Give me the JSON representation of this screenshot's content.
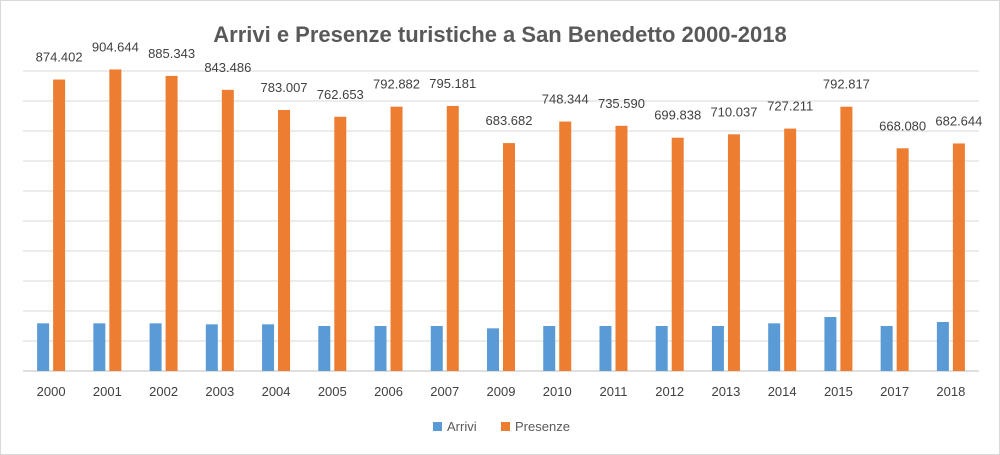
{
  "chart_data": {
    "type": "bar",
    "title": "Arrivi e Presenze turistiche a San Benedetto 2000-2018",
    "xlabel": "",
    "ylabel": "",
    "categories": [
      "2000",
      "2001",
      "2002",
      "2003",
      "2004",
      "2005",
      "2006",
      "2007",
      "2009",
      "2010",
      "2011",
      "2012",
      "2013",
      "2014",
      "2015",
      "2017",
      "2018"
    ],
    "series": [
      {
        "name": "Arrivi",
        "color": "#5b9bd5",
        "values": [
          143000,
          143000,
          143000,
          140000,
          140000,
          135000,
          135000,
          135000,
          128000,
          135000,
          135000,
          135000,
          135000,
          143000,
          162000,
          135000,
          147000
        ]
      },
      {
        "name": "Presenze",
        "color": "#ed7d31",
        "values": [
          874402,
          904644,
          885343,
          843486,
          783007,
          762653,
          792882,
          795181,
          683682,
          748344,
          735590,
          699838,
          710037,
          727211,
          792817,
          668080,
          682644
        ],
        "labels": [
          "874.402",
          "904.644",
          "885.343",
          "843.486",
          "783.007",
          "762.653",
          "792.882",
          "795.181",
          "683.682",
          "748.344",
          "735.590",
          "699.838",
          "710.037",
          "727.211",
          "792.817",
          "668.080",
          "682.644"
        ]
      }
    ],
    "ylim": [
      0,
      900000
    ],
    "grid": true,
    "y_axis_labels_shown": false,
    "legend_position": "bottom"
  }
}
